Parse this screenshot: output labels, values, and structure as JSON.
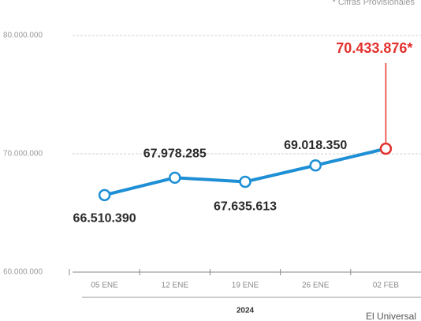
{
  "chart_data": {
    "type": "line",
    "note": "* Cifras Provisionales",
    "categories": [
      "05 ENE",
      "12 ENE",
      "19 ENE",
      "26 ENE",
      "02 FEB"
    ],
    "x_group_label": "2024",
    "series": [
      {
        "name": null,
        "color": "#1e8fd5",
        "values": [
          66510390,
          67978285,
          67635613,
          69018350,
          70433876
        ],
        "value_labels": [
          "66.510.390",
          "67.978.285",
          "67.635.613",
          "69.018.350",
          "70.433.876*"
        ]
      }
    ],
    "highlight_color": "#e3312d",
    "ylim": [
      60000000,
      80000000
    ],
    "yticks": [
      {
        "value": 60000000,
        "label": "60.000.000"
      },
      {
        "value": 70000000,
        "label": "70.000.000"
      },
      {
        "value": 80000000,
        "label": "80.000.000"
      }
    ],
    "grid": true,
    "source": "El Universal"
  }
}
